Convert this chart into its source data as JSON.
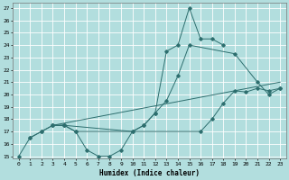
{
  "title": "",
  "xlabel": "Humidex (Indice chaleur)",
  "bg_color": "#b2dede",
  "grid_color": "#ffffff",
  "line_color": "#2d6e6e",
  "xlim": [
    -0.5,
    23.5
  ],
  "ylim": [
    14.8,
    27.4
  ],
  "xticks": [
    0,
    1,
    2,
    3,
    4,
    5,
    6,
    7,
    8,
    9,
    10,
    11,
    12,
    13,
    14,
    15,
    16,
    17,
    18,
    19,
    20,
    21,
    22,
    23
  ],
  "yticks": [
    15,
    16,
    17,
    18,
    19,
    20,
    21,
    22,
    23,
    24,
    25,
    26,
    27
  ],
  "series1_x": [
    0,
    1,
    2,
    3,
    4,
    5,
    6,
    7,
    8,
    9,
    10,
    11,
    12,
    13,
    14,
    15,
    16,
    17,
    18
  ],
  "series1_y": [
    15,
    16.5,
    17,
    17.5,
    17.5,
    17,
    15.5,
    15,
    15,
    15.5,
    17,
    17.5,
    18.5,
    23.5,
    24,
    27,
    24.5,
    24.5,
    24
  ],
  "series2_x": [
    3,
    4,
    10,
    11,
    12,
    13,
    14,
    15,
    19,
    21,
    22,
    23
  ],
  "series2_y": [
    17.5,
    17.5,
    17,
    17.5,
    18.5,
    19.5,
    21.5,
    24,
    23.3,
    21,
    20,
    20.5
  ],
  "series3_x": [
    3,
    23
  ],
  "series3_y": [
    17.5,
    21.0
  ],
  "series4_x": [
    1,
    2,
    3,
    4,
    5,
    16,
    17,
    18,
    19,
    20,
    21,
    22,
    23
  ],
  "series4_y": [
    16.5,
    17,
    17.5,
    17.5,
    17,
    17,
    18,
    19.3,
    20.3,
    20.2,
    20.5,
    20.3,
    20.5
  ]
}
